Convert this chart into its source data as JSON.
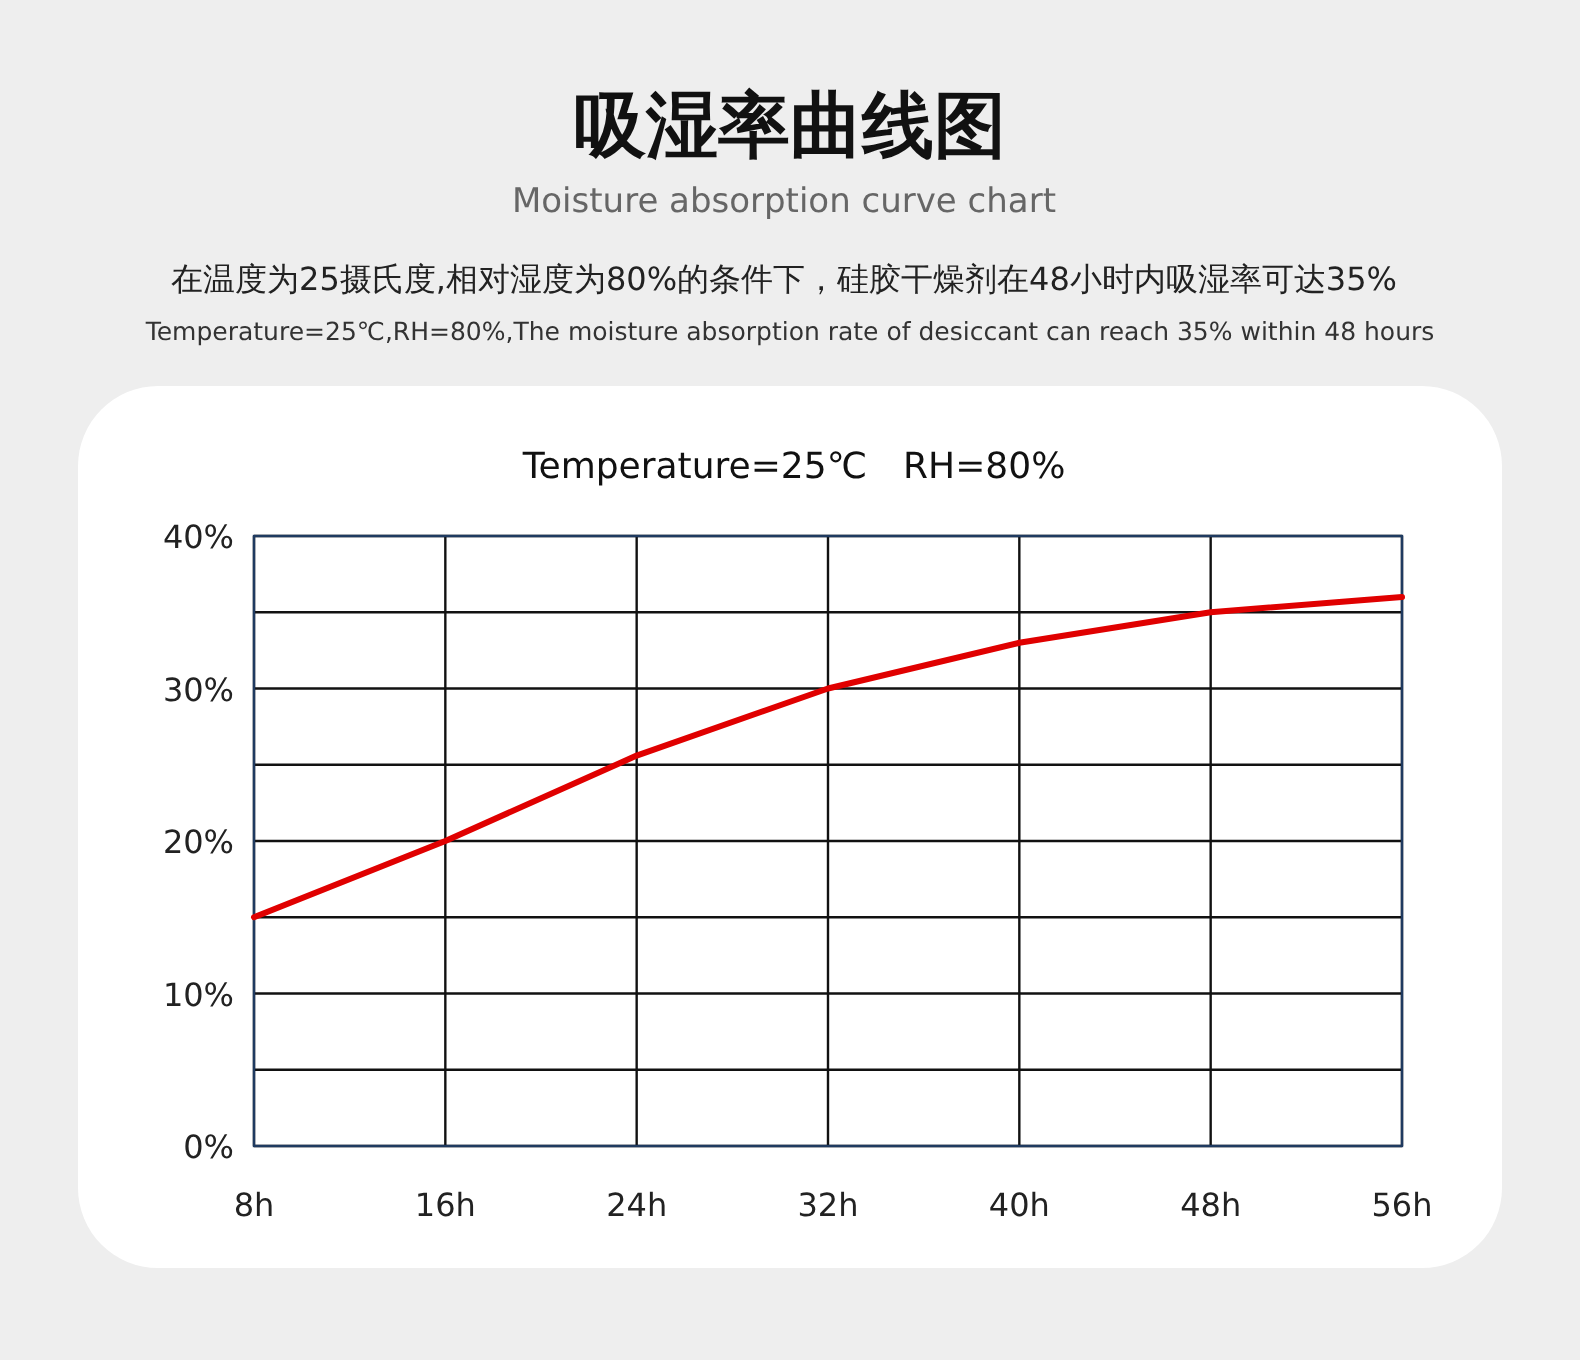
{
  "chart_data": {
    "type": "line",
    "title": "吸湿率曲线图",
    "subtitle": "Moisture absorption curve chart",
    "annotations": [
      "在温度为25摄氏度,相对湿度为80%的条件下，硅胶干燥剂在48小时内吸湿率可达35%",
      "Temperature=25℃,RH=80%,The moisture absorption rate of desiccant can reach 35% within 48 hours",
      "Temperature=25℃　RH=80%"
    ],
    "x": [
      8,
      16,
      24,
      32,
      40,
      48,
      56
    ],
    "series": [
      {
        "color": "#e00000",
        "values": [
          15,
          20,
          25.6,
          30,
          33,
          35,
          36
        ]
      }
    ],
    "xlim": [
      8,
      56
    ],
    "xticks": [
      {
        "value": 8,
        "label": "8h"
      },
      {
        "value": 16,
        "label": "16h"
      },
      {
        "value": 24,
        "label": "24h"
      },
      {
        "value": 32,
        "label": "32h"
      },
      {
        "value": 40,
        "label": "40h"
      },
      {
        "value": 48,
        "label": "48h"
      },
      {
        "value": 56,
        "label": "56h"
      }
    ],
    "ylim": [
      0,
      40
    ],
    "yticks": [
      {
        "value": 0,
        "label": "0%"
      },
      {
        "value": 5,
        "label": null
      },
      {
        "value": 10,
        "label": "10%"
      },
      {
        "value": 15,
        "label": null
      },
      {
        "value": 20,
        "label": "20%"
      },
      {
        "value": 25,
        "label": null
      },
      {
        "value": 30,
        "label": "30%"
      },
      {
        "value": 35,
        "label": null
      },
      {
        "value": 40,
        "label": "40%"
      }
    ],
    "grid": true,
    "marker": "none",
    "line_style": "solid"
  }
}
